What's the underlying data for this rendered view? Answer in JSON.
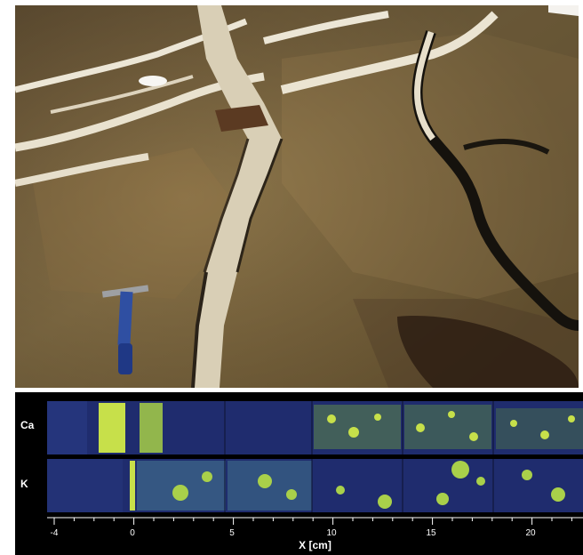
{
  "map": {
    "rows": [
      {
        "id": "ca",
        "label": "Ca"
      },
      {
        "id": "k",
        "label": "K"
      }
    ],
    "axis": {
      "title": "X [cm]",
      "tick_labels": [
        "-4",
        "0",
        "5",
        "10",
        "15",
        "20"
      ]
    }
  },
  "colors": {
    "rock": "#8a7248",
    "vein": "#e8e2d2",
    "dark_vein": "#1a1712",
    "map_background": "#1f2c6e",
    "map_phase_high": "#c7e04a"
  }
}
